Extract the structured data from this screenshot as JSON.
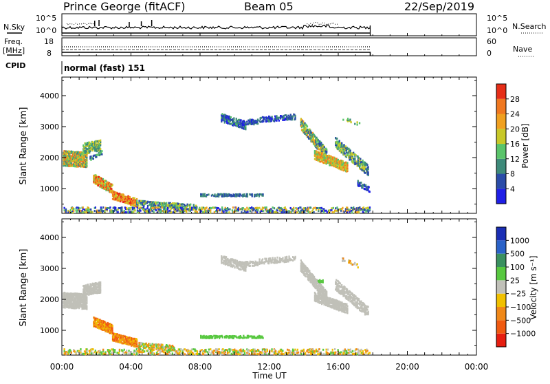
{
  "header": {
    "station": "Prince George (fitACF)",
    "beam": "Beam 05",
    "date": "22/Sep/2019"
  },
  "panels": {
    "nsky": {
      "label": "N.Sky",
      "top_tick": "10^5",
      "bottom_tick": "10^0",
      "right_top_tick": "10^5",
      "right_bottom_tick": "10^0",
      "right_label": "N.Search"
    },
    "freq": {
      "label_line1": "Freq.",
      "label_line2": "[MHz]",
      "top_tick": "18",
      "bottom_tick": "8",
      "right_top_tick": "60",
      "right_bottom_tick": "0",
      "right_label": "Nave"
    },
    "cpid": {
      "label": "CPID",
      "value": "normal (fast) 151"
    }
  },
  "chart_data": [
    {
      "type": "heatmap",
      "name": "power",
      "ylabel": "Slant Range [km]",
      "yticks": [
        "1000",
        "2000",
        "3000",
        "4000"
      ],
      "ylim": [
        200,
        4600
      ],
      "xlim_hours": [
        0,
        24
      ],
      "data_end_hours": 17.85,
      "colorbar_label": "Power [dB]",
      "colorbar_ticks": [
        "4",
        "8",
        "12",
        "16",
        "20",
        "24",
        "28"
      ],
      "colors": [
        "#1f1fe6",
        "#2a4ca8",
        "#3e8a7a",
        "#5ac46a",
        "#c8c828",
        "#f0a020",
        "#f07820",
        "#e62e18"
      ]
    },
    {
      "type": "heatmap",
      "name": "velocity",
      "ylabel": "Slant Range [km]",
      "yticks": [
        "1000",
        "2000",
        "3000",
        "4000"
      ],
      "ylim": [
        200,
        4600
      ],
      "xlim_hours": [
        0,
        24
      ],
      "data_end_hours": 17.85,
      "colorbar_label": "Velocity [m s⁻¹]",
      "colorbar_ticks": [
        "1000",
        "500",
        "100",
        "25",
        "−25",
        "−100",
        "−500",
        "−1000"
      ],
      "colors": [
        "#1a2eb4",
        "#2a62c8",
        "#3a9060",
        "#58c840",
        "#c0c0b8",
        "#f0c000",
        "#f08818",
        "#f05a10",
        "#e61e10"
      ]
    }
  ],
  "xaxis": {
    "label": "Time UT",
    "ticks": [
      "00:00",
      "04:00",
      "08:00",
      "12:00",
      "16:00",
      "20:00",
      "00:00"
    ]
  }
}
